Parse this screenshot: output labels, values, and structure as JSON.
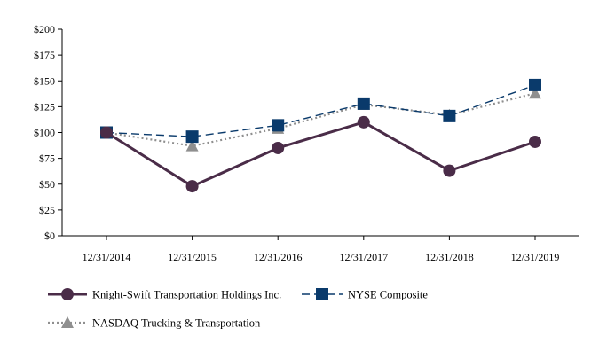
{
  "chart_data": {
    "type": "line",
    "title": "",
    "xlabel": "",
    "ylabel": "",
    "categories": [
      "12/31/2014",
      "12/31/2015",
      "12/31/2016",
      "12/31/2017",
      "12/31/2018",
      "12/31/2019"
    ],
    "ylim": [
      0,
      200
    ],
    "yticks": [
      0,
      25,
      50,
      75,
      100,
      125,
      150,
      175,
      200
    ],
    "ytick_labels": [
      "$0",
      "$25",
      "$50",
      "$75",
      "$100",
      "$125",
      "$150",
      "$175",
      "$200"
    ],
    "grid": false,
    "legend_position": "bottom",
    "series": [
      {
        "name": "Knight-Swift Transportation Holdings Inc.",
        "values": [
          100,
          48,
          85,
          110,
          63,
          91
        ],
        "color": "#4a2c48",
        "line_style": "solid",
        "marker": "circle"
      },
      {
        "name": "NYSE Composite",
        "values": [
          100,
          96,
          107,
          128,
          116,
          146
        ],
        "color": "#0a3a6b",
        "line_style": "dashed",
        "marker": "square"
      },
      {
        "name": "NASDAQ Trucking & Transportation",
        "values": [
          100,
          87,
          104,
          127,
          117,
          138
        ],
        "color": "#8f8f8f",
        "line_style": "dotted",
        "marker": "triangle"
      }
    ]
  }
}
